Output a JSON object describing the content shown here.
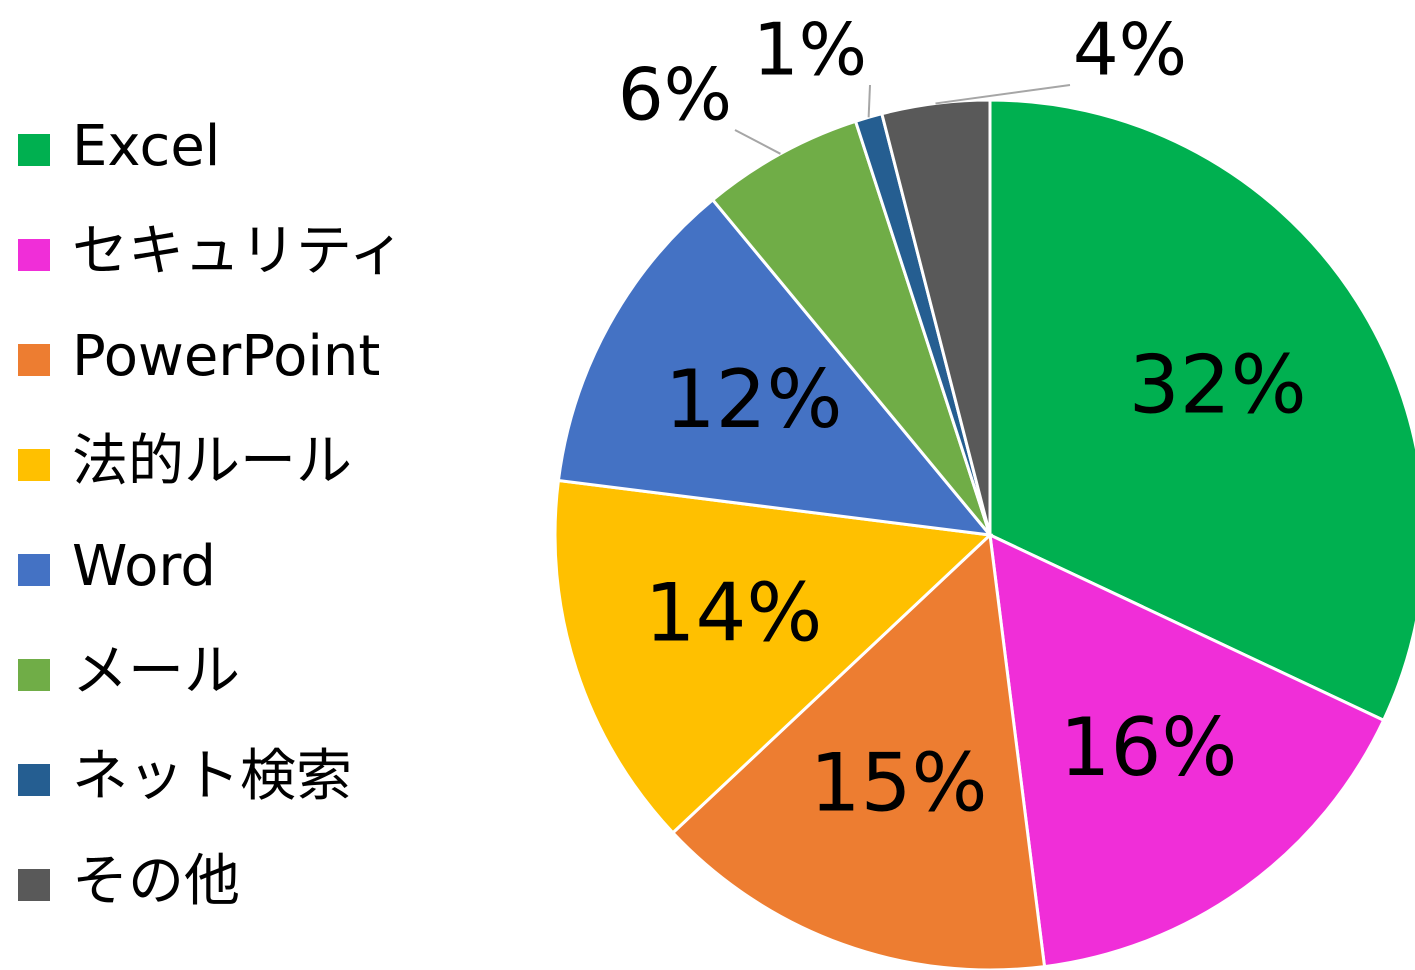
{
  "chart_data": {
    "type": "pie",
    "categories": [
      "Excel",
      "セキュリティ",
      "PowerPoint",
      "法的ルール",
      "Word",
      "メール",
      "ネット検索",
      "その他"
    ],
    "values": [
      32,
      16,
      15,
      14,
      12,
      6,
      1,
      4
    ],
    "value_labels": [
      "32%",
      "16%",
      "15%",
      "14%",
      "12%",
      "6%",
      "1%",
      "4%"
    ],
    "colors": [
      "#00b050",
      "#f02ed8",
      "#ed7d31",
      "#ffc000",
      "#4472c4",
      "#70ad47",
      "#255e91",
      "#595959"
    ],
    "legend": "left"
  }
}
